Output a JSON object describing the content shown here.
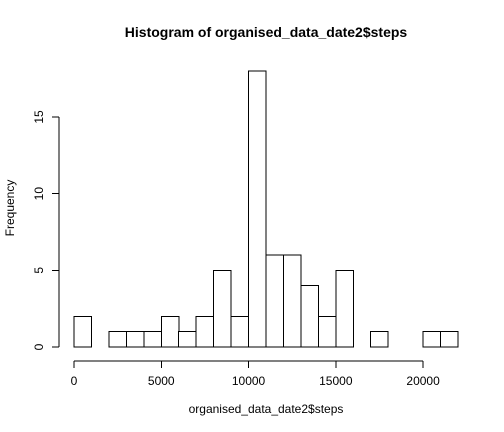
{
  "chart_data": {
    "type": "bar",
    "title": "Histogram of organised_data_date2$steps",
    "xlabel": "organised_data_date2$steps",
    "ylabel": "Frequency",
    "bin_width": 1000,
    "bins": [
      {
        "start": 0,
        "end": 1000,
        "count": 2
      },
      {
        "start": 1000,
        "end": 2000,
        "count": 0
      },
      {
        "start": 2000,
        "end": 3000,
        "count": 1
      },
      {
        "start": 3000,
        "end": 4000,
        "count": 1
      },
      {
        "start": 4000,
        "end": 5000,
        "count": 1
      },
      {
        "start": 5000,
        "end": 6000,
        "count": 2
      },
      {
        "start": 6000,
        "end": 7000,
        "count": 1
      },
      {
        "start": 7000,
        "end": 8000,
        "count": 2
      },
      {
        "start": 8000,
        "end": 9000,
        "count": 5
      },
      {
        "start": 9000,
        "end": 10000,
        "count": 2
      },
      {
        "start": 10000,
        "end": 11000,
        "count": 18
      },
      {
        "start": 11000,
        "end": 12000,
        "count": 6
      },
      {
        "start": 12000,
        "end": 13000,
        "count": 6
      },
      {
        "start": 13000,
        "end": 14000,
        "count": 4
      },
      {
        "start": 14000,
        "end": 15000,
        "count": 2
      },
      {
        "start": 15000,
        "end": 16000,
        "count": 5
      },
      {
        "start": 16000,
        "end": 17000,
        "count": 0
      },
      {
        "start": 17000,
        "end": 18000,
        "count": 1
      },
      {
        "start": 18000,
        "end": 19000,
        "count": 0
      },
      {
        "start": 19000,
        "end": 20000,
        "count": 0
      },
      {
        "start": 20000,
        "end": 21000,
        "count": 1
      },
      {
        "start": 21000,
        "end": 22000,
        "count": 1
      }
    ],
    "xlim": [
      0,
      22000
    ],
    "ylim": [
      0,
      18
    ],
    "x_ticks": [
      0,
      5000,
      10000,
      15000,
      20000
    ],
    "y_ticks": [
      0,
      5,
      10,
      15
    ],
    "grid": false,
    "legend": "none",
    "bar_fill": "#ffffff",
    "bar_stroke": "#000000"
  }
}
